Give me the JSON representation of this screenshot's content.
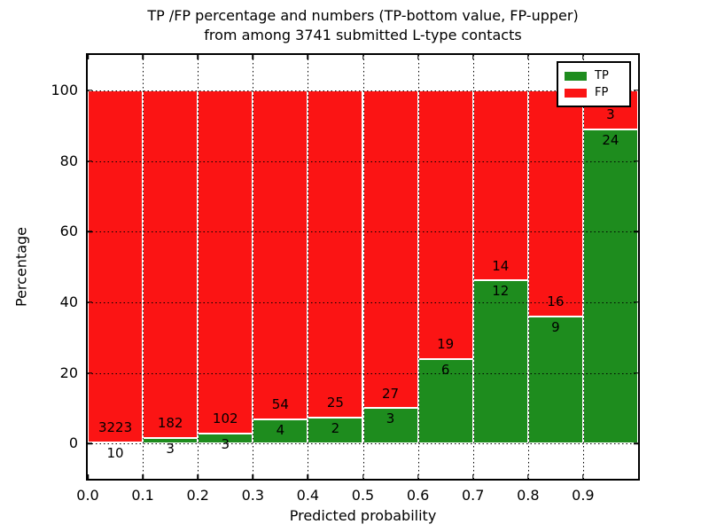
{
  "chart_data": {
    "type": "bar",
    "stacked": true,
    "unit": "percent",
    "title_lines": [
      "TP /FP percentage and numbers (TP-bottom value, FP-upper)",
      "from among 3741 submitted L-type contacts"
    ],
    "xlabel": "Predicted probability",
    "ylabel": "Percentage",
    "total_contacts": 3741,
    "categories": [
      "0.0-0.1",
      "0.1-0.2",
      "0.2-0.3",
      "0.3-0.4",
      "0.4-0.5",
      "0.5-0.6",
      "0.6-0.7",
      "0.7-0.8",
      "0.8-0.9",
      "0.9-1.0"
    ],
    "series": [
      {
        "name": "TP",
        "color": "#1e8c1e",
        "counts": [
          10,
          3,
          3,
          4,
          2,
          3,
          6,
          12,
          9,
          24
        ]
      },
      {
        "name": "FP",
        "color": "#fb1414",
        "counts": [
          3223,
          182,
          102,
          54,
          25,
          27,
          19,
          14,
          16,
          3
        ]
      }
    ],
    "tp_percent": [
      0.31,
      1.62,
      2.86,
      6.9,
      7.41,
      10.0,
      24.0,
      46.15,
      36.0,
      88.89
    ],
    "xlim": [
      0.0,
      1.0
    ],
    "ylim": [
      -10,
      110
    ],
    "xtick_labels": [
      "0.0",
      "0.1",
      "0.2",
      "0.3",
      "0.4",
      "0.5",
      "0.6",
      "0.7",
      "0.8",
      "0.9"
    ],
    "ytick_labels": [
      "0",
      "20",
      "40",
      "60",
      "80",
      "100"
    ],
    "ytick_values": [
      0,
      20,
      40,
      60,
      80,
      100
    ],
    "grid": true,
    "legend": {
      "position": "upper right",
      "entries": [
        "TP",
        "FP"
      ]
    },
    "annotation_note": "TP count shown below segment boundary, FP count above"
  }
}
